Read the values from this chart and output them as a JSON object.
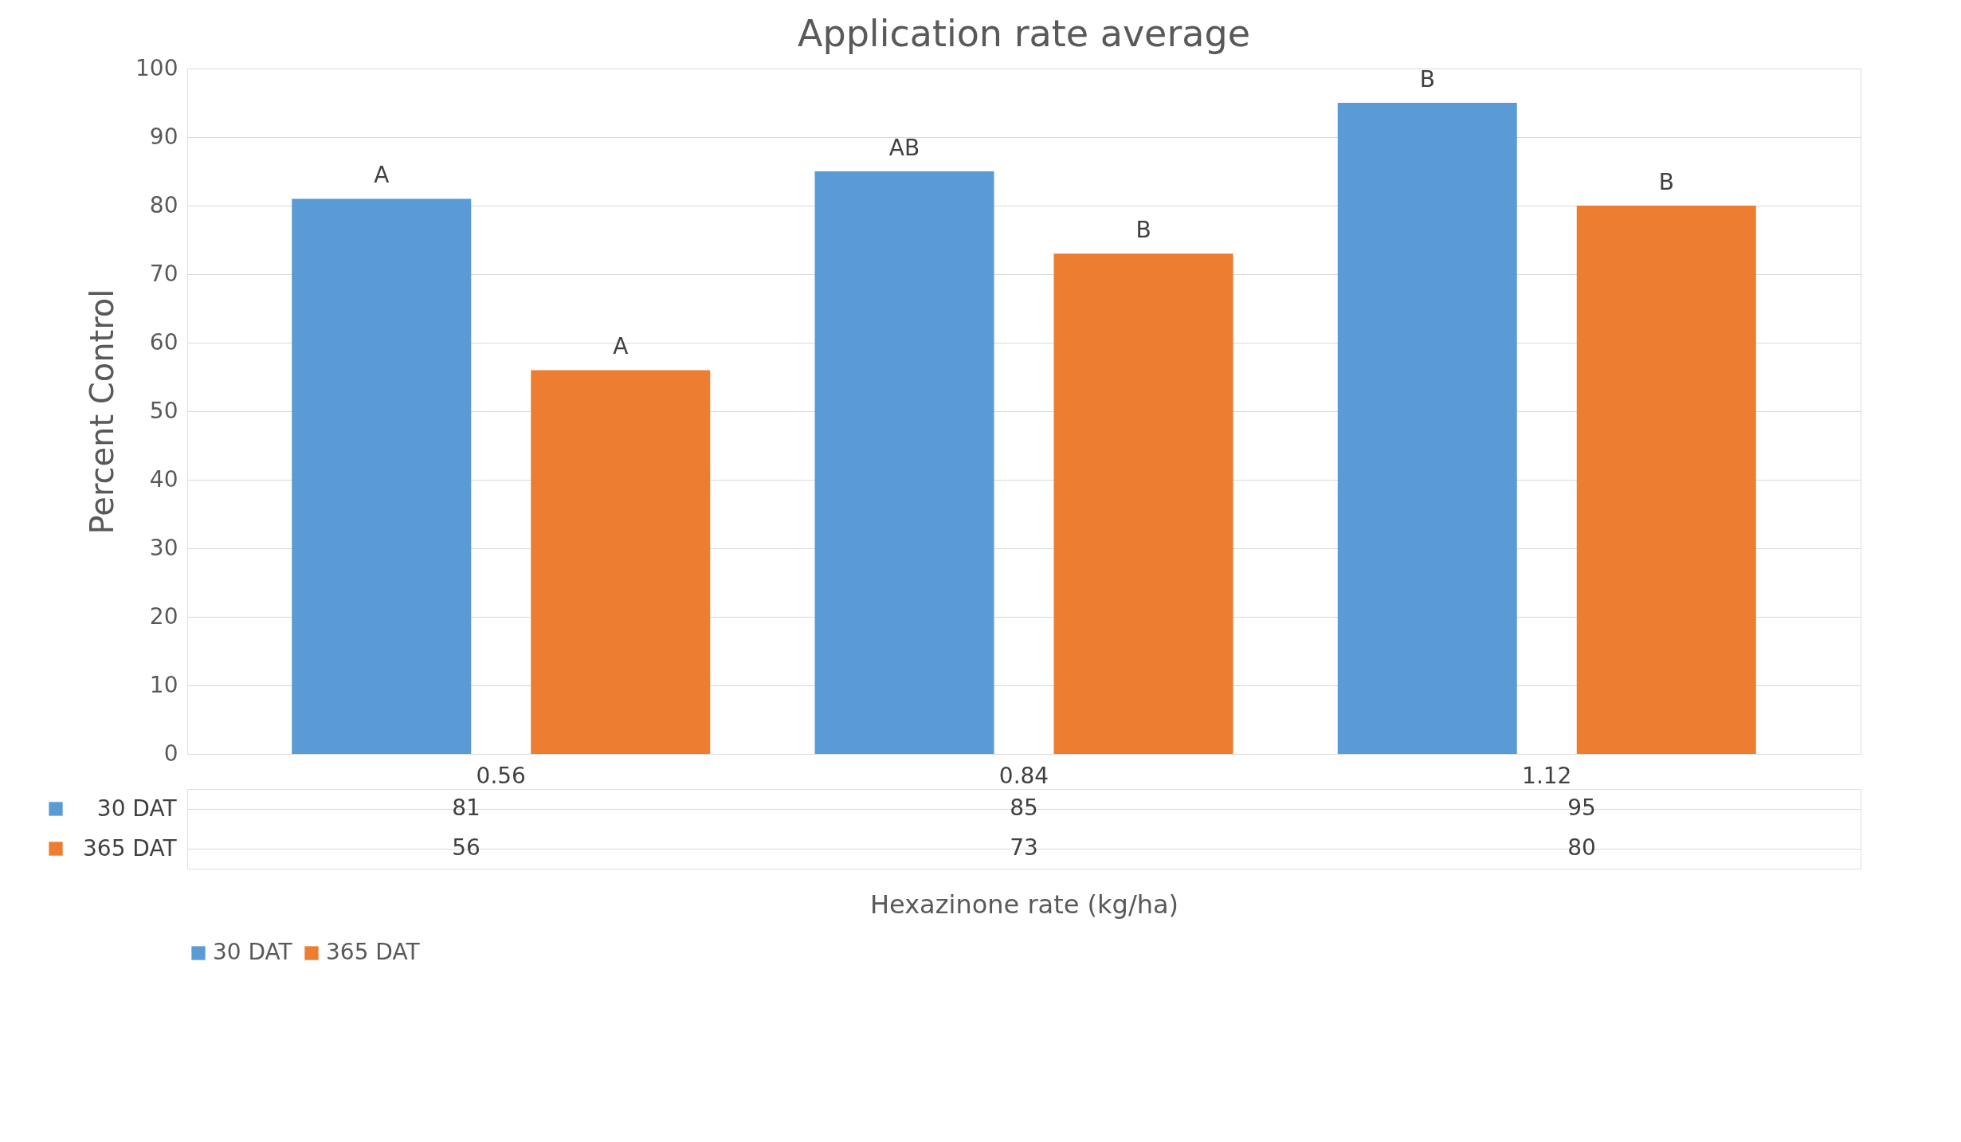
{
  "chart_data": {
    "type": "bar",
    "title": "Application rate average",
    "xlabel": "Hexazinone rate (kg/ha)",
    "ylabel": "Percent Control",
    "categories": [
      "0.56",
      "0.84",
      "1.12"
    ],
    "series": [
      {
        "name": "30 DAT",
        "color": "#5b9bd5",
        "values": [
          81,
          85,
          95
        ]
      },
      {
        "name": "365 DAT",
        "color": "#ed7d31",
        "values": [
          56,
          73,
          80
        ]
      }
    ],
    "ylim": [
      0,
      100
    ],
    "yticks": [
      0,
      10,
      20,
      30,
      40,
      50,
      60,
      70,
      80,
      90,
      100
    ],
    "grid": "y",
    "legend": "bottom",
    "data_labels": true,
    "annotations": [
      "A",
      "A",
      "AB",
      "B",
      "B",
      "B"
    ]
  }
}
